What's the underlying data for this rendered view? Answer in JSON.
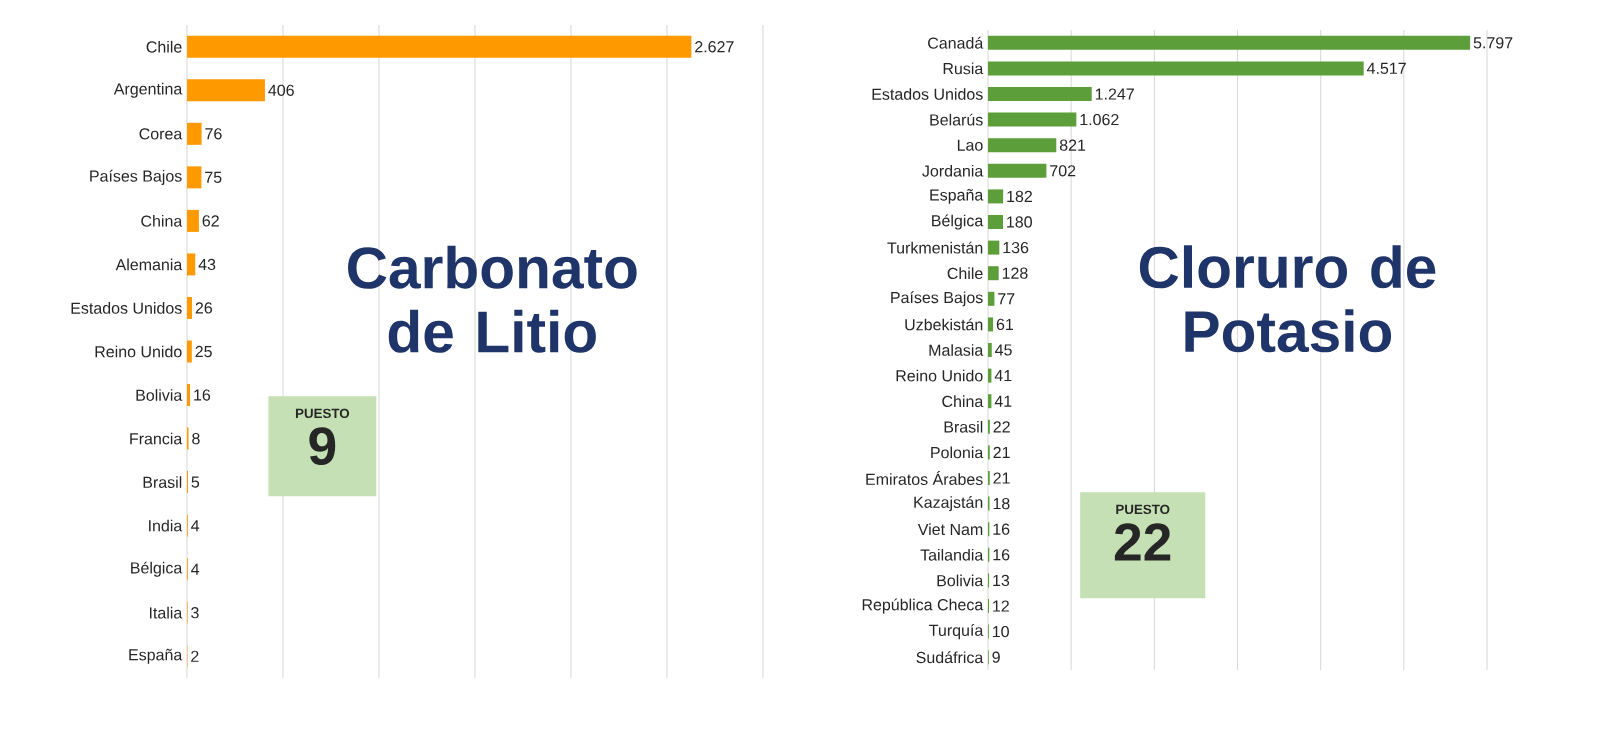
{
  "chart_data": [
    {
      "type": "bar",
      "orientation": "horizontal",
      "title": "Carbonato de Litio",
      "annotations": [
        "PUESTO",
        "9"
      ],
      "categories": [
        "Chile",
        "Argentina",
        "Corea",
        "Países Bajos",
        "China",
        "Alemania",
        "Estados Unidos",
        "Reino Unido",
        "Bolivia",
        "Francia",
        "Brasil",
        "India",
        "Bélgica",
        "Italia",
        "España"
      ],
      "values": [
        2627,
        406,
        76,
        75,
        62,
        43,
        26,
        25,
        16,
        8,
        5,
        4,
        4,
        3,
        2
      ],
      "value_labels": [
        "2.627",
        "406",
        "76",
        "75",
        "62",
        "43",
        "26",
        "25",
        "16",
        "8",
        "5",
        "4",
        "4",
        "3",
        "2"
      ],
      "color": "#ff9900",
      "xlim": [
        0,
        3000
      ],
      "xticks": [
        {
          "value": 0,
          "label": null
        },
        {
          "value": 500,
          "label": null
        },
        {
          "value": 1000,
          "label": null
        },
        {
          "value": 1500,
          "label": null
        },
        {
          "value": 2000,
          "label": null
        },
        {
          "value": 2500,
          "label": null
        },
        {
          "value": 3000,
          "label": null
        }
      ],
      "grid": "x",
      "tick_labels": "y"
    },
    {
      "type": "bar",
      "orientation": "horizontal",
      "title": "Cloruro de Potasio",
      "annotations": [
        "PUESTO",
        "22"
      ],
      "categories": [
        "Canadá",
        "Rusia",
        "Estados Unidos",
        "Belarús",
        "Lao",
        "Jordania",
        "España",
        "Bélgica",
        "Turkmenistán",
        "Chile",
        "Países Bajos",
        "Uzbekistán",
        "Malasia",
        "Reino Unido",
        "China",
        "Brasil",
        "Polonia",
        "Emiratos Árabes",
        "Kazajstán",
        "Viet Nam",
        "Tailandia",
        "Bolivia",
        "República Checa",
        "Turquía",
        "Sudáfrica"
      ],
      "values": [
        5797,
        4517,
        1247,
        1062,
        821,
        702,
        182,
        180,
        136,
        128,
        77,
        61,
        45,
        41,
        41,
        22,
        21,
        21,
        18,
        16,
        16,
        13,
        12,
        10,
        9
      ],
      "value_labels": [
        "5.797",
        "4.517",
        "1.247",
        "1.062",
        "821",
        "702",
        "182",
        "180",
        "136",
        "128",
        "77",
        "61",
        "45",
        "41",
        "41",
        "22",
        "21",
        "21",
        "18",
        "16",
        "16",
        "13",
        "12",
        "10",
        "9"
      ],
      "color": "#5b9e3a",
      "xlim": [
        0,
        6000
      ],
      "xticks": [
        {
          "value": 0,
          "label": null
        },
        {
          "value": 1000,
          "label": null
        },
        {
          "value": 2000,
          "label": null
        },
        {
          "value": 3000,
          "label": null
        },
        {
          "value": 4000,
          "label": null
        },
        {
          "value": 5000,
          "label": null
        },
        {
          "value": 6000,
          "label": null
        }
      ],
      "grid": "x",
      "tick_labels": "y"
    }
  ]
}
